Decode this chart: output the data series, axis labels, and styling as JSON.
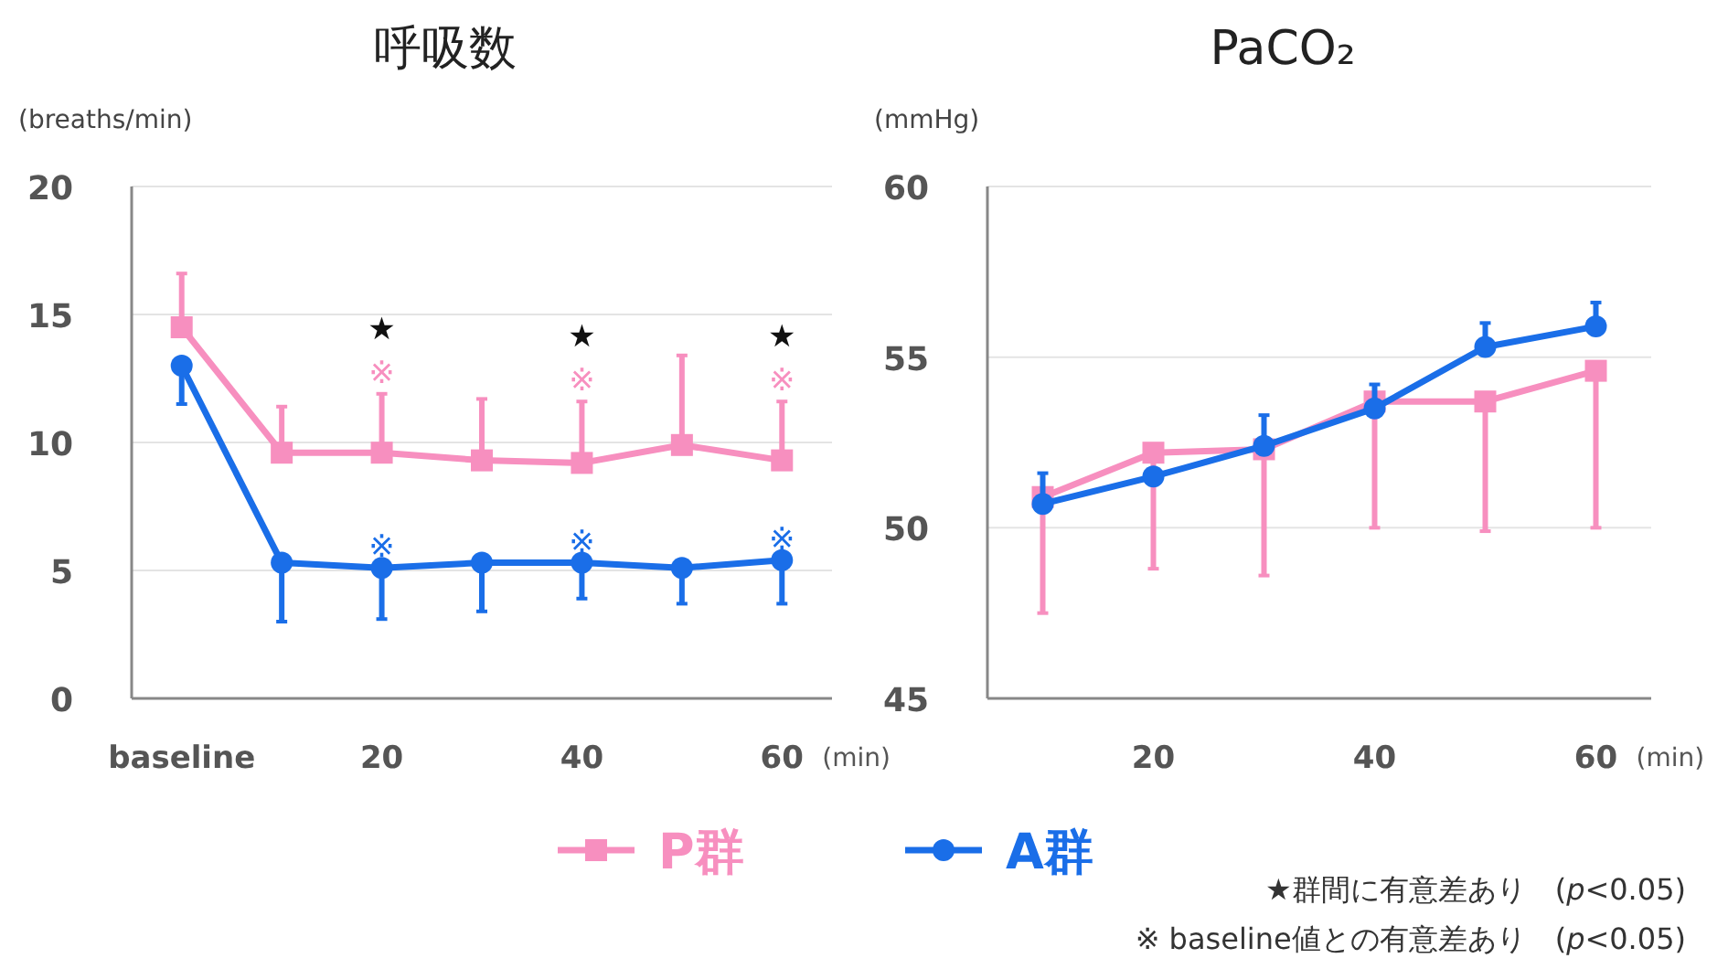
{
  "chart_data": [
    {
      "type": "line",
      "title": "呼吸数",
      "ylabel": "(breaths/min)",
      "xlabel": "(min)",
      "categories": [
        "baseline",
        null,
        "20",
        null,
        "40",
        null,
        "60"
      ],
      "ylim": [
        0,
        20
      ],
      "yticks": [
        0,
        5,
        10,
        15,
        20
      ],
      "grid": "y",
      "legend": "bottom",
      "series": [
        {
          "name": "P群",
          "color": "#f78fbf",
          "marker": "square",
          "values": [
            14.5,
            9.6,
            9.6,
            9.3,
            9.2,
            9.9,
            9.3
          ],
          "errors": [
            [
              14.5,
              16.6
            ],
            [
              9.6,
              11.4
            ],
            [
              9.6,
              11.9
            ],
            [
              9.3,
              11.7
            ],
            [
              9.2,
              11.6
            ],
            [
              9.9,
              13.4
            ],
            [
              9.3,
              11.6
            ]
          ]
        },
        {
          "name": "A群",
          "color": "#1a6ee8",
          "marker": "circle",
          "values": [
            13.0,
            5.3,
            5.1,
            5.3,
            5.3,
            5.1,
            5.4
          ],
          "errors": [
            [
              11.5,
              13.0
            ],
            [
              3.0,
              5.3
            ],
            [
              3.1,
              5.1
            ],
            [
              3.4,
              5.3
            ],
            [
              3.9,
              5.3
            ],
            [
              3.7,
              5.1
            ],
            [
              3.7,
              5.4
            ]
          ]
        }
      ],
      "annotations": [
        {
          "text": "★※",
          "x": "20",
          "y": 9.6
        },
        {
          "text": "★※",
          "x": "40",
          "y": 9.2
        },
        {
          "text": "★※",
          "x": "60",
          "y": 9.3
        },
        {
          "text": "※",
          "x": "20",
          "y": 5.1
        },
        {
          "text": "※",
          "x": "40",
          "y": 5.3
        },
        {
          "text": "※",
          "x": "60",
          "y": 5.4
        },
        "★群間に有意差あり　(*p*<0.05)",
        "※ baseline値との有意差あり　(*p*<0.05)"
      ]
    },
    {
      "type": "line",
      "title": "PaCO₂",
      "ylabel": "(mmHg)",
      "xlabel": "(min)",
      "categories": [
        null,
        "20",
        null,
        "40",
        null,
        "60"
      ],
      "ylim": [
        45,
        60
      ],
      "yticks": [
        45,
        50,
        55,
        60
      ],
      "grid": "y",
      "series": [
        {
          "color": "#f78fbf",
          "marker": "square",
          "values": [
            50.9,
            52.2,
            52.3,
            53.7,
            53.7,
            54.6
          ],
          "errors": [
            [
              47.5,
              50.9
            ],
            [
              48.8,
              52.2
            ],
            [
              48.6,
              52.3
            ],
            [
              50.0,
              53.7
            ],
            [
              49.9,
              53.7
            ],
            [
              50.0,
              54.6
            ]
          ]
        },
        {
          "color": "#1a6ee8",
          "marker": "circle",
          "values": [
            50.7,
            51.5,
            52.4,
            53.5,
            55.3,
            55.9
          ],
          "errors": [
            [
              50.7,
              51.6
            ],
            null,
            [
              52.4,
              53.3
            ],
            [
              53.5,
              54.2
            ],
            [
              55.3,
              56.0
            ],
            [
              55.9,
              56.6
            ]
          ]
        }
      ]
    }
  ]
}
